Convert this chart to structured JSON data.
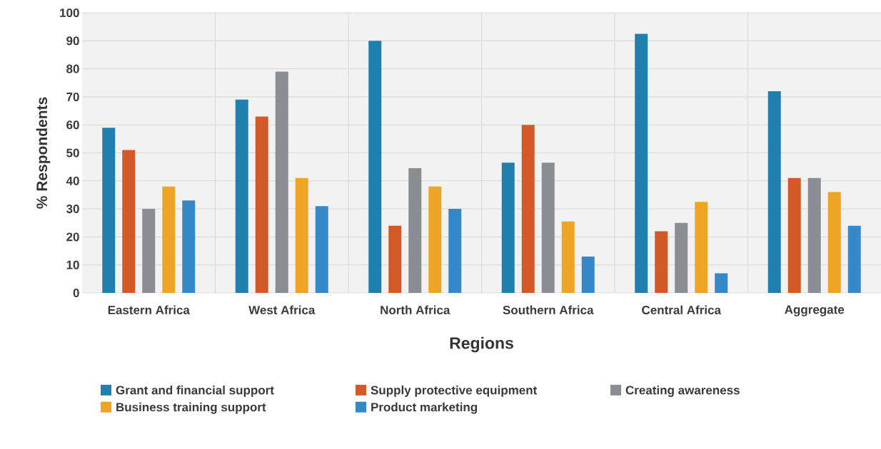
{
  "chart_data": {
    "type": "bar",
    "xlabel": "Regions",
    "ylabel": "% Respondents",
    "categories": [
      "Eastern Africa",
      "West Africa",
      "North Africa",
      "Southern Africa",
      "Central Africa",
      "Aggregate"
    ],
    "series": [
      {
        "name": "Grant and financial support",
        "color": "#1f80b0",
        "values": [
          59,
          69,
          90,
          46.5,
          92.5,
          72
        ]
      },
      {
        "name": "Supply protective equipment",
        "color": "#d35a28",
        "values": [
          51,
          63,
          24,
          60,
          22,
          41
        ]
      },
      {
        "name": "Creating awareness",
        "color": "#8a8e92",
        "values": [
          30,
          79,
          44.5,
          46.5,
          25,
          41
        ]
      },
      {
        "name": "Business training support",
        "color": "#eea526",
        "values": [
          38,
          41,
          38,
          25.5,
          32.5,
          36
        ]
      },
      {
        "name": "Product marketing",
        "color": "#3689c8",
        "values": [
          33,
          31,
          30,
          13,
          7,
          24
        ]
      }
    ],
    "ylim": [
      0,
      100
    ],
    "yticks": [
      0,
      10,
      20,
      30,
      40,
      50,
      60,
      70,
      80,
      90,
      100
    ],
    "grid": true,
    "legend": "bottom"
  }
}
